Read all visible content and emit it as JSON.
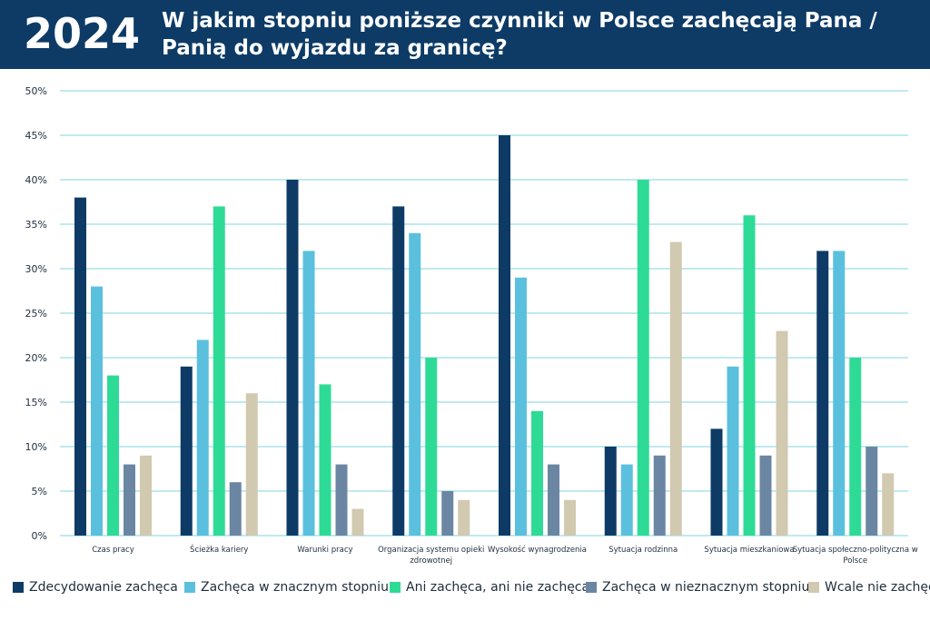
{
  "header": {
    "year": "2024",
    "title": "W jakim stopniu poniższe czynniki w Polsce zachęcają Pana / Panią do wyjazdu za granicę?"
  },
  "colors": {
    "header_bg": "#0d3b66",
    "grid": "#7fd6de",
    "series": [
      "#0d3b66",
      "#5bc0de",
      "#2edb96",
      "#6b86a3",
      "#d1c9b0"
    ]
  },
  "chart_data": {
    "type": "bar",
    "title": "W jakim stopniu poniższe czynniki w Polsce zachęcają Pana / Panią do wyjazdu za granicę?",
    "categories": [
      "Czas pracy",
      "Ścieżka kariery",
      "Warunki pracy",
      "Organizacja systemu opieki zdrowotnej",
      "Wysokość wynagrodzenia",
      "Sytuacja rodzinna",
      "Sytuacja mieszkaniowa",
      "Sytuacja społeczno-polityczna w Polsce"
    ],
    "series": [
      {
        "name": "Zdecydowanie zachęca",
        "values": [
          38,
          19,
          40,
          37,
          45,
          10,
          12,
          32
        ]
      },
      {
        "name": "Zachęca w znacznym stopniu",
        "values": [
          28,
          22,
          32,
          34,
          29,
          8,
          19,
          32
        ]
      },
      {
        "name": "Ani zachęca, ani nie zachęca",
        "values": [
          18,
          37,
          17,
          20,
          14,
          40,
          36,
          20
        ]
      },
      {
        "name": "Zachęca w nieznacznym stopniu",
        "values": [
          8,
          6,
          8,
          5,
          8,
          9,
          9,
          10
        ]
      },
      {
        "name": "Wcale nie zachęca",
        "values": [
          9,
          16,
          3,
          4,
          4,
          33,
          23,
          7
        ]
      }
    ],
    "yticks": [
      "0%",
      "5%",
      "10%",
      "15%",
      "20%",
      "25%",
      "30%",
      "35%",
      "40%",
      "45%",
      "50%"
    ],
    "ylim": [
      0,
      50
    ],
    "grid": true,
    "legend_position": "bottom"
  }
}
